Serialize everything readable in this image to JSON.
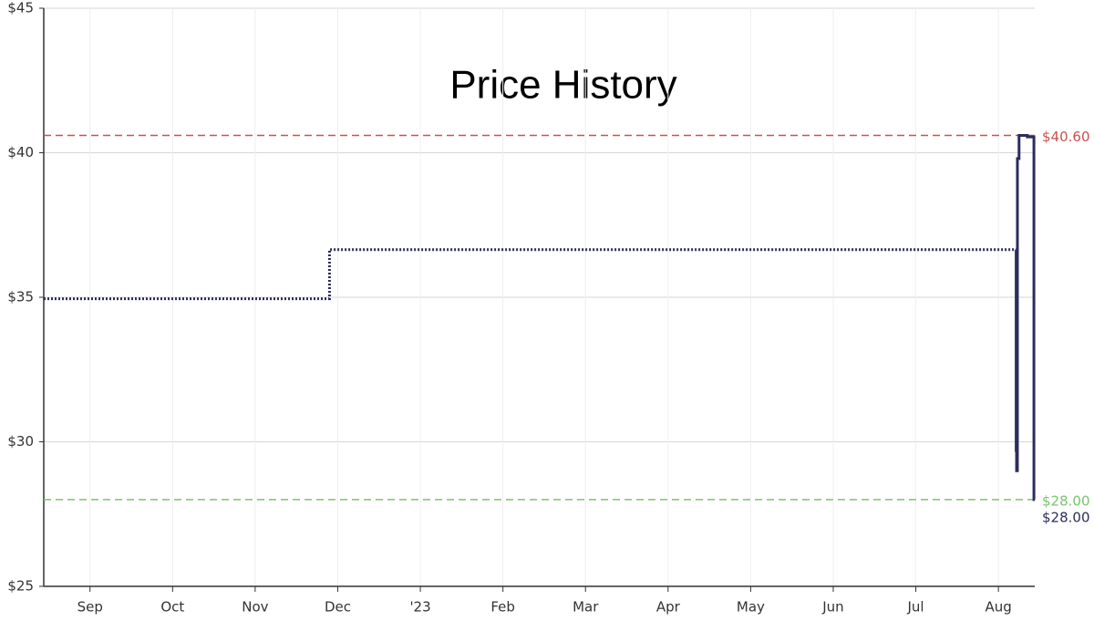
{
  "chart_data": {
    "type": "step",
    "title": "Price History",
    "xlim": [
      -0.56,
      11.44
    ],
    "xticks": [
      {
        "value": 0,
        "label": "Sep"
      },
      {
        "value": 1,
        "label": "Oct"
      },
      {
        "value": 2,
        "label": "Nov"
      },
      {
        "value": 3,
        "label": "Dec"
      },
      {
        "value": 4,
        "label": "'23"
      },
      {
        "value": 5,
        "label": "Feb"
      },
      {
        "value": 6,
        "label": "Mar"
      },
      {
        "value": 7,
        "label": "Apr"
      },
      {
        "value": 8,
        "label": "May"
      },
      {
        "value": 9,
        "label": "Jun"
      },
      {
        "value": 10,
        "label": "Jul"
      },
      {
        "value": 11,
        "label": "Aug"
      }
    ],
    "ylim": [
      25,
      45
    ],
    "yticks": [
      {
        "value": 25,
        "label": "$25"
      },
      {
        "value": 30,
        "label": "$30"
      },
      {
        "value": 35,
        "label": "$35"
      },
      {
        "value": 40,
        "label": "$40"
      },
      {
        "value": 45,
        "label": "$45"
      }
    ],
    "grid": true,
    "series": [
      {
        "color": "#2b2d5c",
        "dash": "dotted",
        "x": [
          -0.56,
          2.9,
          11.21
        ],
        "values": [
          34.95,
          36.65,
          36.65
        ]
      },
      {
        "color": "#2b2d5c",
        "dash": "solid",
        "x": [
          11.21,
          11.215,
          11.22,
          11.23,
          11.25,
          11.35,
          11.43,
          11.44
        ],
        "values": [
          36.65,
          29.7,
          29.0,
          39.8,
          40.6,
          40.55,
          28.0,
          28.0
        ],
        "end_label": "$28.00"
      }
    ],
    "reference_lines": [
      {
        "value": 40.6,
        "label": "$40.60",
        "color": "#c9524e"
      },
      {
        "value": 28.0,
        "label": "$28.00",
        "color": "#7cc36f"
      }
    ]
  }
}
